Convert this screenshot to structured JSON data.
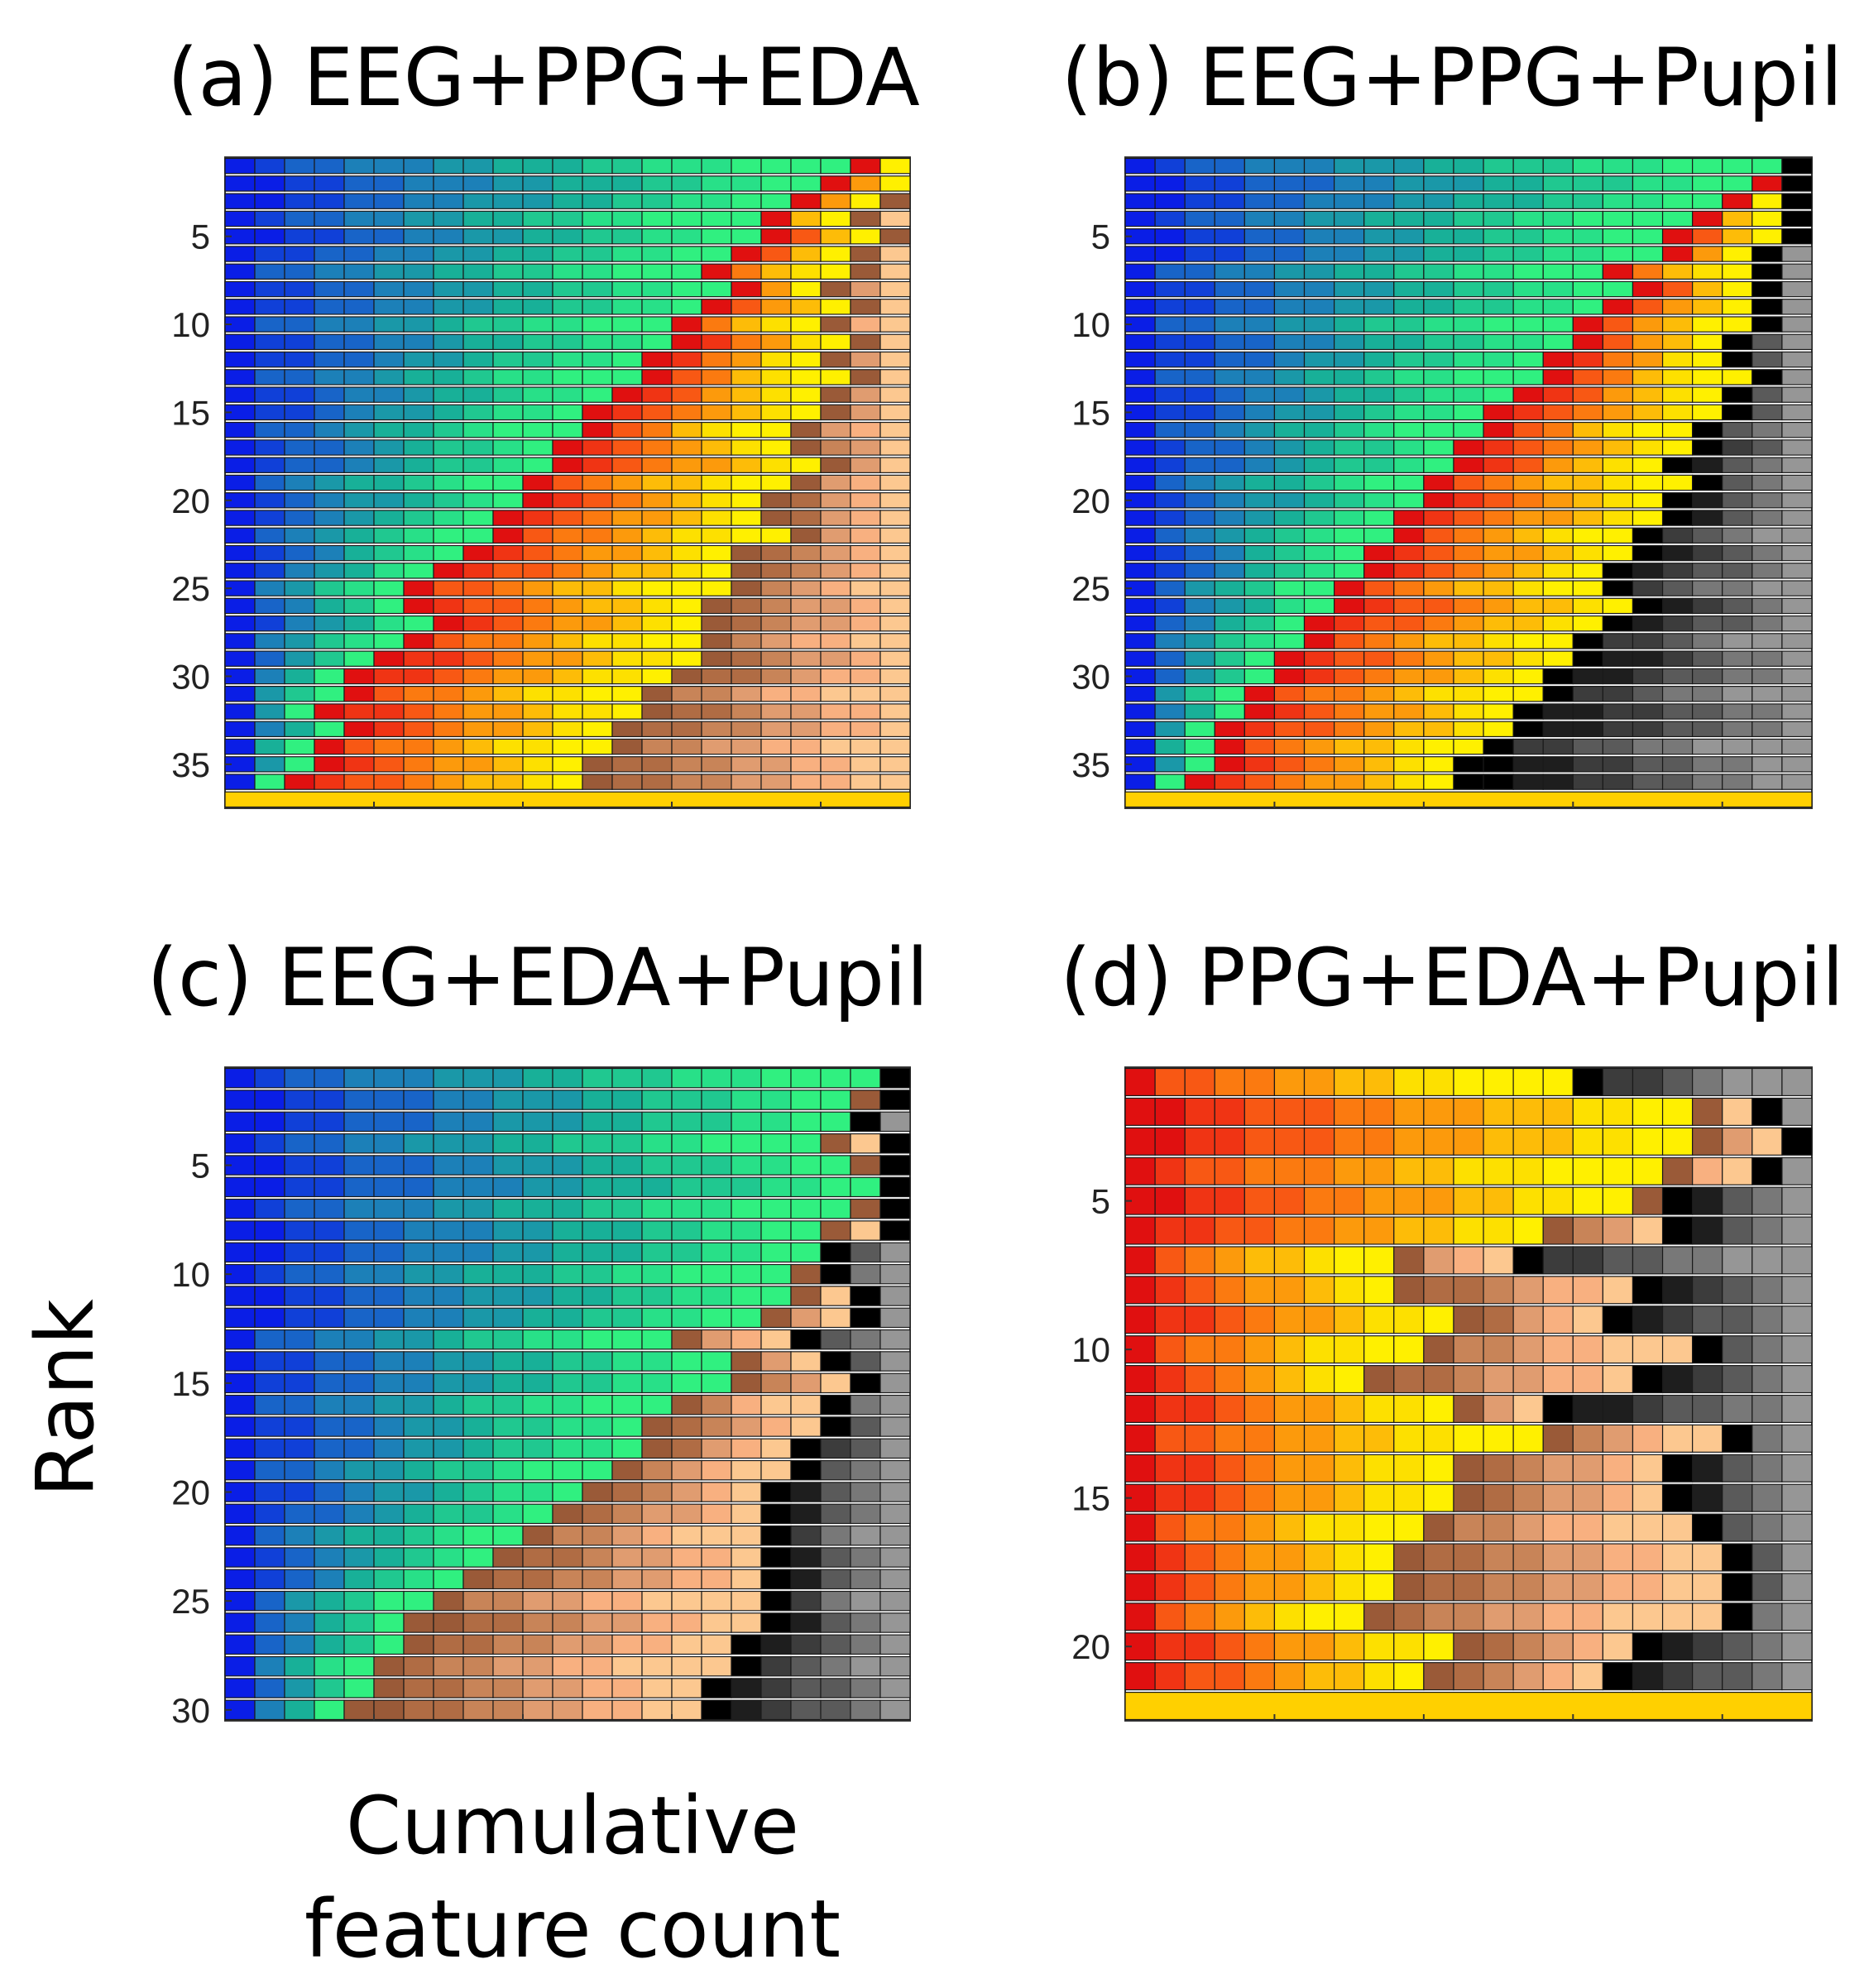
{
  "figure": {
    "ylabel": "Rank",
    "xlabel_lines": [
      "Cumulative",
      "feature count"
    ]
  },
  "feature_colors": {
    "EEG": [
      "#0a1ee6",
      "#1040d8",
      "#1864c8",
      "#1c80b8",
      "#1a98a8",
      "#18b098",
      "#20c890",
      "#28e088",
      "#30f080"
    ],
    "PPG": [
      "#e01010",
      "#f03414",
      "#f85814",
      "#fb7a10",
      "#fc9a0c",
      "#fdbc08",
      "#fde000",
      "#fff000"
    ],
    "EDA": [
      "#9a5a38",
      "#b06c44",
      "#c88458",
      "#e09c70",
      "#f8b080",
      "#fcc890"
    ],
    "Pupil": [
      "#000000",
      "#1e1e1e",
      "#3c3c3c",
      "#5a5a5a",
      "#787878",
      "#969696"
    ],
    "full_bar": "#ffd000"
  },
  "chart_data": [
    {
      "type": "stacked-bar",
      "panel": "a",
      "title": "(a)  EEG+PPG+EDA",
      "modalities": [
        "EEG",
        "PPG",
        "EDA"
      ],
      "xlabel": "Cumulative feature count",
      "ylabel": "Rank",
      "n_rows": 37,
      "yticks": [
        5,
        10,
        15,
        20,
        25,
        30,
        35
      ],
      "xlim": [
        0,
        23
      ],
      "full_bar_row": 37,
      "rows": [
        [
          21,
          2,
          0
        ],
        [
          20,
          3,
          0
        ],
        [
          19,
          3,
          1
        ],
        [
          18,
          3,
          2
        ],
        [
          18,
          4,
          1
        ],
        [
          17,
          4,
          2
        ],
        [
          16,
          5,
          2
        ],
        [
          17,
          3,
          3
        ],
        [
          16,
          5,
          2
        ],
        [
          15,
          5,
          3
        ],
        [
          15,
          6,
          2
        ],
        [
          14,
          6,
          3
        ],
        [
          14,
          7,
          2
        ],
        [
          13,
          7,
          3
        ],
        [
          12,
          8,
          3
        ],
        [
          12,
          7,
          4
        ],
        [
          11,
          8,
          4
        ],
        [
          11,
          9,
          3
        ],
        [
          10,
          9,
          4
        ],
        [
          10,
          8,
          5
        ],
        [
          9,
          9,
          5
        ],
        [
          9,
          10,
          4
        ],
        [
          8,
          9,
          6
        ],
        [
          7,
          10,
          6
        ],
        [
          6,
          11,
          6
        ],
        [
          6,
          10,
          7
        ],
        [
          7,
          9,
          7
        ],
        [
          6,
          10,
          7
        ],
        [
          5,
          11,
          7
        ],
        [
          4,
          11,
          8
        ],
        [
          4,
          10,
          9
        ],
        [
          3,
          11,
          9
        ],
        [
          4,
          9,
          10
        ],
        [
          3,
          10,
          10
        ],
        [
          3,
          9,
          11
        ],
        [
          2,
          10,
          11
        ],
        [
          23,
          0,
          0
        ]
      ]
    },
    {
      "type": "stacked-bar",
      "panel": "b",
      "title": "(b)  EEG+PPG+Pupil",
      "modalities": [
        "EEG",
        "PPG",
        "Pupil"
      ],
      "xlabel": "Cumulative feature count",
      "ylabel": "Rank",
      "n_rows": 37,
      "yticks": [
        5,
        10,
        15,
        20,
        25,
        30,
        35
      ],
      "xlim": [
        0,
        23
      ],
      "full_bar_row": 37,
      "rows": [
        [
          22,
          0,
          1
        ],
        [
          21,
          1,
          1
        ],
        [
          20,
          2,
          1
        ],
        [
          19,
          3,
          1
        ],
        [
          18,
          4,
          1
        ],
        [
          18,
          3,
          2
        ],
        [
          16,
          5,
          2
        ],
        [
          17,
          4,
          2
        ],
        [
          16,
          5,
          2
        ],
        [
          15,
          6,
          2
        ],
        [
          15,
          5,
          3
        ],
        [
          14,
          6,
          3
        ],
        [
          14,
          7,
          2
        ],
        [
          13,
          7,
          3
        ],
        [
          12,
          8,
          3
        ],
        [
          12,
          7,
          4
        ],
        [
          11,
          8,
          4
        ],
        [
          11,
          7,
          5
        ],
        [
          10,
          9,
          4
        ],
        [
          10,
          8,
          5
        ],
        [
          9,
          9,
          5
        ],
        [
          9,
          8,
          6
        ],
        [
          8,
          9,
          6
        ],
        [
          8,
          8,
          7
        ],
        [
          7,
          9,
          7
        ],
        [
          7,
          10,
          6
        ],
        [
          6,
          10,
          7
        ],
        [
          6,
          9,
          8
        ],
        [
          5,
          10,
          8
        ],
        [
          5,
          9,
          9
        ],
        [
          4,
          10,
          9
        ],
        [
          4,
          9,
          10
        ],
        [
          3,
          10,
          10
        ],
        [
          3,
          9,
          11
        ],
        [
          3,
          8,
          12
        ],
        [
          2,
          9,
          12
        ],
        [
          23,
          0,
          0
        ]
      ]
    },
    {
      "type": "stacked-bar",
      "panel": "c",
      "title": "(c)  EEG+EDA+Pupil",
      "modalities": [
        "EEG",
        "EDA",
        "Pupil"
      ],
      "xlabel": "Cumulative feature count",
      "ylabel": "Rank",
      "n_rows": 30,
      "yticks": [
        5,
        10,
        15,
        20,
        25,
        30
      ],
      "xlim": [
        0,
        23
      ],
      "full_bar_row": null,
      "rows": [
        [
          22,
          0,
          1
        ],
        [
          21,
          1,
          1
        ],
        [
          21,
          0,
          2
        ],
        [
          20,
          2,
          1
        ],
        [
          21,
          1,
          1
        ],
        [
          22,
          0,
          1
        ],
        [
          21,
          1,
          1
        ],
        [
          20,
          2,
          1
        ],
        [
          20,
          0,
          3
        ],
        [
          19,
          1,
          3
        ],
        [
          19,
          2,
          2
        ],
        [
          18,
          3,
          2
        ],
        [
          15,
          4,
          4
        ],
        [
          17,
          3,
          3
        ],
        [
          17,
          4,
          2
        ],
        [
          15,
          5,
          3
        ],
        [
          14,
          6,
          3
        ],
        [
          14,
          5,
          4
        ],
        [
          13,
          6,
          4
        ],
        [
          12,
          6,
          5
        ],
        [
          11,
          7,
          5
        ],
        [
          10,
          8,
          5
        ],
        [
          9,
          9,
          5
        ],
        [
          8,
          10,
          5
        ],
        [
          7,
          11,
          5
        ],
        [
          6,
          12,
          5
        ],
        [
          6,
          11,
          6
        ],
        [
          5,
          12,
          6
        ],
        [
          5,
          11,
          7
        ],
        [
          4,
          12,
          7
        ]
      ]
    },
    {
      "type": "stacked-bar",
      "panel": "d",
      "title": "(d)  PPG+EDA+Pupil",
      "modalities": [
        "PPG",
        "EDA",
        "Pupil"
      ],
      "xlabel": "Cumulative feature count",
      "ylabel": "Rank",
      "n_rows": 22,
      "yticks": [
        5,
        10,
        15,
        20
      ],
      "xlim": [
        0,
        23
      ],
      "full_bar_row": 22,
      "rows": [
        [
          15,
          0,
          8
        ],
        [
          19,
          2,
          2
        ],
        [
          19,
          3,
          1
        ],
        [
          18,
          3,
          2
        ],
        [
          17,
          1,
          5
        ],
        [
          14,
          4,
          5
        ],
        [
          9,
          4,
          10
        ],
        [
          9,
          8,
          6
        ],
        [
          11,
          5,
          7
        ],
        [
          10,
          9,
          4
        ],
        [
          8,
          9,
          6
        ],
        [
          11,
          3,
          9
        ],
        [
          14,
          6,
          3
        ],
        [
          11,
          7,
          5
        ],
        [
          11,
          7,
          5
        ],
        [
          10,
          9,
          4
        ],
        [
          9,
          11,
          3
        ],
        [
          9,
          11,
          3
        ],
        [
          8,
          12,
          3
        ],
        [
          11,
          6,
          6
        ],
        [
          10,
          6,
          7
        ],
        [
          23,
          0,
          0
        ]
      ]
    }
  ]
}
